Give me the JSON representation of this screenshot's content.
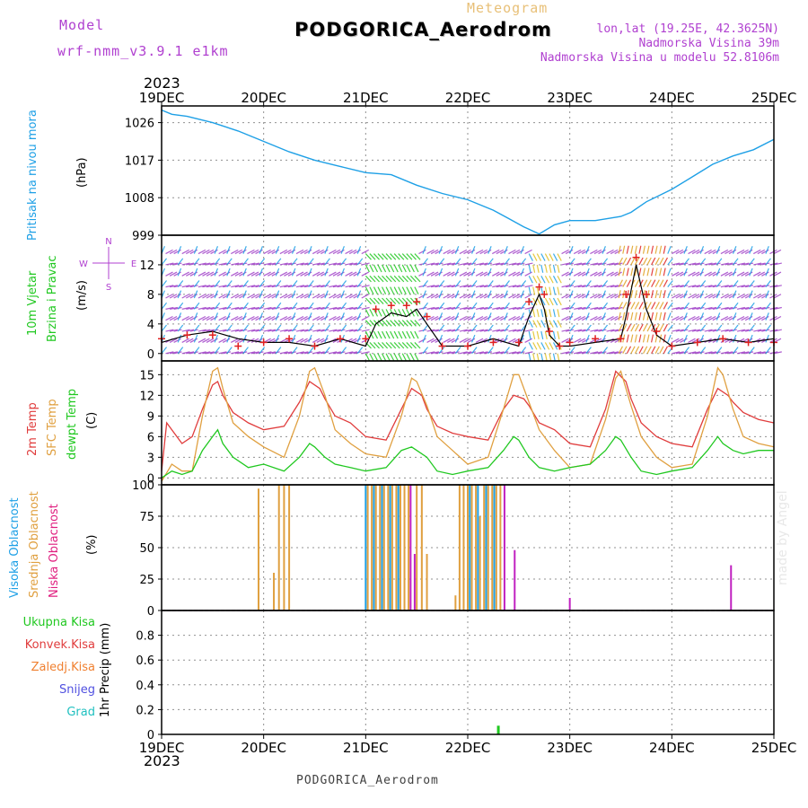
{
  "header": {
    "model_label": "Model",
    "model_name": "wrf-nmm_v3.9.1 e1km",
    "meteogram_label": "Meteogram",
    "station": "PODGORICA_Aerodrom",
    "lonlat": "lon,lat (19.25E, 42.3625N)",
    "elevation": "Nadmorska Visina 39m",
    "model_elevation": "Nadmorska Visina u modelu 52.8106m",
    "year": "2023",
    "credit": "made by Angel",
    "footer_station": "PODGORICA_Aerodrom"
  },
  "colors": {
    "pressure": "#1ea0e6",
    "wind_speed": "#000000",
    "gust": "#e02020",
    "temp2m": "#e03c3c",
    "sfc_temp": "#e0a040",
    "dewpt": "#20c820",
    "high_cloud": "#1ea0e6",
    "mid_cloud": "#e0a040",
    "low_cloud": "#c020c0",
    "total_precip": "#20c820",
    "conv_precip": "#e03c3c",
    "frozen_precip": "#f08030",
    "snow": "#5050e0",
    "hail": "#20c0c0",
    "wind_n": "#a040c8",
    "wind_e": "#1ea0e6",
    "wind_s": "#e02020",
    "wind_w": "#20c820"
  },
  "chart_data": [
    {
      "type": "line",
      "panel": "pressure",
      "ylabel_lines": [
        "Pritisak na nivou mora"
      ],
      "unit": "(hPa)",
      "x_ticks": [
        "19DEC",
        "20DEC",
        "21DEC",
        "22DEC",
        "23DEC",
        "24DEC",
        "25DEC"
      ],
      "x_range_days": [
        0,
        6
      ],
      "ylim": [
        999,
        1030
      ],
      "yticks": [
        999,
        1008,
        1017,
        1026
      ],
      "grid": true,
      "series": [
        {
          "x": [
            0,
            0.1,
            0.25,
            0.5,
            0.75,
            1.0,
            1.25,
            1.5,
            1.75,
            2.0,
            2.25,
            2.5,
            2.75,
            3.0,
            3.25,
            3.4,
            3.55,
            3.7,
            3.85,
            4.0,
            4.25,
            4.5,
            4.6,
            4.75,
            5.0,
            5.2,
            5.4,
            5.6,
            5.8,
            6.0
          ],
          "y": [
            1029,
            1028,
            1027.5,
            1026,
            1024,
            1021.5,
            1019,
            1017,
            1015.5,
            1014,
            1013.5,
            1011,
            1009,
            1007.5,
            1005,
            1003,
            1001,
            999.3,
            1001.5,
            1002.5,
            1002.5,
            1003.5,
            1004.5,
            1007,
            1010,
            1013,
            1016,
            1018,
            1019.5,
            1022
          ]
        }
      ]
    },
    {
      "type": "line",
      "panel": "wind",
      "ylabel_lines": [
        "10m Vjetar",
        "Brzina i Pravac"
      ],
      "unit": "(m/s)",
      "direction_labels": [
        "N",
        "E",
        "S",
        "W"
      ],
      "ylim": [
        -1,
        16
      ],
      "yticks": [
        0,
        4,
        8,
        12
      ],
      "grid": true,
      "series": [
        {
          "name": "speed",
          "x": [
            0,
            0.25,
            0.5,
            0.75,
            1.0,
            1.25,
            1.5,
            1.75,
            2.0,
            2.1,
            2.25,
            2.4,
            2.5,
            2.6,
            2.75,
            3.0,
            3.25,
            3.5,
            3.6,
            3.7,
            3.75,
            3.8,
            3.9,
            4.0,
            4.25,
            4.5,
            4.55,
            4.65,
            4.75,
            4.85,
            5.0,
            5.25,
            5.5,
            5.75,
            6.0
          ],
          "y": [
            1.5,
            2.5,
            3,
            2,
            1.5,
            1.5,
            1,
            2,
            1,
            4,
            5.5,
            5,
            6,
            4,
            1,
            1,
            2,
            1,
            5,
            8,
            6,
            2.5,
            1,
            1,
            1.5,
            2,
            5,
            12,
            6,
            2.5,
            1,
            1.5,
            2,
            1.5,
            2
          ]
        },
        {
          "name": "gust",
          "x": [
            0,
            0.25,
            0.5,
            0.75,
            1.0,
            1.25,
            1.5,
            1.75,
            2.0,
            2.1,
            2.25,
            2.4,
            2.5,
            2.6,
            2.75,
            3.0,
            3.25,
            3.5,
            3.6,
            3.7,
            3.75,
            3.8,
            3.9,
            4.0,
            4.25,
            4.5,
            4.55,
            4.65,
            4.75,
            4.85,
            5.0,
            5.25,
            5.5,
            5.75,
            6.0
          ],
          "y": [
            2,
            2.5,
            2.5,
            1,
            1.5,
            2,
            1,
            2,
            2,
            6,
            6.5,
            6.5,
            7,
            5,
            1,
            1,
            1.5,
            1.5,
            7,
            9,
            8,
            3,
            1,
            1.5,
            2,
            2,
            8,
            13,
            8,
            3,
            1,
            1.5,
            2,
            1.5,
            1.5
          ]
        }
      ]
    },
    {
      "type": "line",
      "panel": "temperature",
      "ylabel_lines": [
        "2m Temp",
        "SFC Temp",
        "dewpt Temp"
      ],
      "unit": "(C)",
      "ylim": [
        -1,
        17
      ],
      "yticks": [
        0,
        3,
        6,
        9,
        12,
        15
      ],
      "grid": true,
      "series": [
        {
          "name": "2m Temp",
          "x": [
            0,
            0.05,
            0.1,
            0.2,
            0.3,
            0.4,
            0.5,
            0.55,
            0.6,
            0.7,
            0.85,
            1.0,
            1.2,
            1.35,
            1.45,
            1.55,
            1.6,
            1.7,
            1.85,
            2.0,
            2.2,
            2.35,
            2.45,
            2.55,
            2.6,
            2.7,
            2.85,
            3.0,
            3.2,
            3.35,
            3.45,
            3.55,
            3.6,
            3.7,
            3.85,
            4.0,
            4.2,
            4.35,
            4.45,
            4.55,
            4.6,
            4.7,
            4.85,
            5.0,
            5.2,
            5.35,
            5.45,
            5.55,
            5.6,
            5.7,
            5.85,
            6.0
          ],
          "y": [
            1,
            8,
            7,
            5,
            6,
            10,
            13.5,
            14,
            12,
            9.5,
            8,
            7,
            7.5,
            11,
            14,
            13,
            11.5,
            9,
            8,
            6,
            5.5,
            10,
            13,
            12,
            10,
            7.5,
            6.5,
            6,
            5.5,
            10,
            12,
            11.5,
            10.5,
            8,
            7,
            5,
            4.5,
            10,
            15.5,
            14,
            11.5,
            8,
            6,
            5,
            4.5,
            10,
            13,
            12,
            11,
            9.5,
            8.5,
            8
          ]
        },
        {
          "name": "SFC Temp",
          "x": [
            0,
            0.1,
            0.2,
            0.3,
            0.4,
            0.5,
            0.55,
            0.6,
            0.7,
            0.85,
            1.0,
            1.2,
            1.35,
            1.45,
            1.5,
            1.6,
            1.7,
            1.85,
            2.0,
            2.2,
            2.35,
            2.45,
            2.5,
            2.6,
            2.7,
            2.85,
            3.0,
            3.2,
            3.35,
            3.45,
            3.5,
            3.6,
            3.7,
            3.85,
            4.0,
            4.2,
            4.35,
            4.45,
            4.5,
            4.6,
            4.7,
            4.85,
            5.0,
            5.2,
            5.35,
            5.45,
            5.5,
            5.6,
            5.7,
            5.85,
            6.0
          ],
          "y": [
            -0.5,
            2,
            1,
            1,
            9,
            15.5,
            16,
            13,
            8,
            6,
            4.5,
            3,
            9,
            15.5,
            16,
            12,
            7,
            5,
            3.5,
            3,
            9,
            14.5,
            14,
            10.5,
            6,
            4,
            2,
            3,
            10,
            15,
            15,
            11,
            7,
            4,
            1.5,
            2,
            8.5,
            14.5,
            15.5,
            10.5,
            6,
            3,
            1.5,
            2,
            9,
            16,
            15,
            10,
            6,
            5,
            4.5
          ]
        },
        {
          "name": "dewpt Temp",
          "x": [
            0,
            0.1,
            0.2,
            0.3,
            0.4,
            0.5,
            0.55,
            0.6,
            0.7,
            0.85,
            1.0,
            1.2,
            1.35,
            1.45,
            1.5,
            1.6,
            1.7,
            1.85,
            2.0,
            2.2,
            2.35,
            2.45,
            2.5,
            2.6,
            2.7,
            2.85,
            3.0,
            3.2,
            3.35,
            3.45,
            3.5,
            3.6,
            3.7,
            3.85,
            4.0,
            4.2,
            4.35,
            4.45,
            4.5,
            4.6,
            4.7,
            4.85,
            5.0,
            5.2,
            5.35,
            5.45,
            5.5,
            5.6,
            5.7,
            5.85,
            6.0
          ],
          "y": [
            0,
            1,
            0.5,
            1,
            4,
            6,
            7,
            5,
            3,
            1.5,
            2,
            1,
            3,
            5,
            4.5,
            3,
            2,
            1.5,
            1,
            1.5,
            4,
            4.5,
            4,
            3,
            1,
            0.5,
            1,
            1.5,
            4,
            6,
            5.5,
            3,
            1.5,
            1,
            1.5,
            2,
            4,
            6,
            5.5,
            3,
            1,
            0.5,
            1,
            1.5,
            4,
            6,
            5,
            4,
            3.5,
            4,
            4
          ]
        }
      ]
    },
    {
      "type": "bar",
      "panel": "clouds",
      "ylabel_lines": [
        "Visoka Oblacnost",
        "Srednja Oblacnost",
        "Niska Oblacnost"
      ],
      "unit": "(%)",
      "ylim": [
        0,
        100
      ],
      "yticks": [
        0,
        25,
        50,
        75,
        100
      ],
      "grid": true,
      "series": [
        {
          "name": "Visoka Oblacnost",
          "x": [
            2.0,
            2.08,
            2.16,
            2.24,
            2.32,
            3.02,
            3.1,
            3.18,
            3.26
          ],
          "values": [
            100,
            100,
            100,
            100,
            100,
            100,
            100,
            100,
            100
          ]
        },
        {
          "name": "Srednja Oblacnost",
          "x": [
            0.95,
            1.1,
            1.15,
            1.2,
            1.25,
            2.02,
            2.06,
            2.1,
            2.14,
            2.18,
            2.22,
            2.26,
            2.3,
            2.34,
            2.38,
            2.42,
            2.5,
            2.55,
            2.6,
            2.88,
            2.92,
            2.96,
            3.0,
            3.04,
            3.08,
            3.12,
            3.16,
            3.2,
            3.24,
            3.28,
            3.32
          ],
          "values": [
            97,
            30,
            100,
            100,
            100,
            100,
            100,
            100,
            100,
            100,
            100,
            100,
            100,
            100,
            100,
            100,
            100,
            100,
            45,
            12,
            100,
            100,
            100,
            100,
            100,
            75,
            100,
            100,
            100,
            100,
            100
          ]
        },
        {
          "name": "Niska Oblacnost",
          "x": [
            2.44,
            2.48,
            3.36,
            3.46,
            4.0,
            5.58
          ],
          "values": [
            100,
            45,
            100,
            48,
            10,
            36
          ]
        }
      ]
    },
    {
      "type": "bar",
      "panel": "precipitation",
      "ylabel": "1hr Precip (mm)",
      "legend": [
        "Ukupna Kisa",
        "Konvek.Kisa",
        "Zaledj.Kisa",
        "Snijeg",
        "Grad"
      ],
      "ylim": [
        0,
        1
      ],
      "yticks": [
        0,
        0.2,
        0.4,
        0.6,
        0.8
      ],
      "grid": true,
      "series": [
        {
          "name": "Ukupna Kisa",
          "x": [
            3.3
          ],
          "values": [
            0.07
          ]
        }
      ]
    }
  ]
}
